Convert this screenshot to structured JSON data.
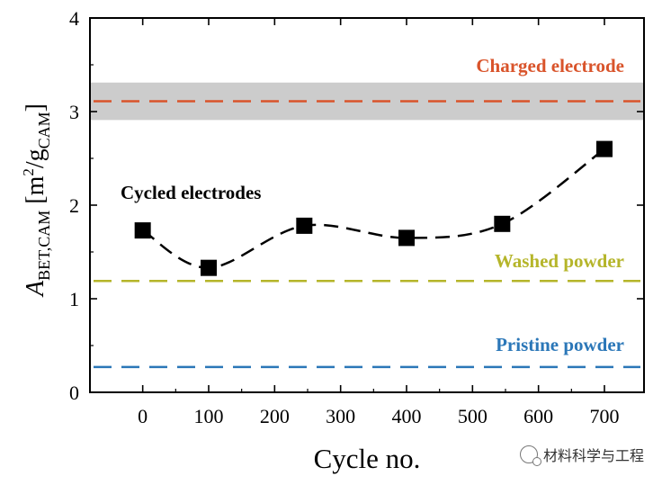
{
  "chart_data": {
    "type": "scatter",
    "title": "",
    "xlabel": "Cycle no.",
    "ylabel": {
      "main": "A",
      "sub": "BET,CAM",
      "unit_pre": " [m",
      "unit_sup": "2",
      "unit_mid": "/g",
      "unit_sub": "CAM",
      "unit_post": "]"
    },
    "xlim": [
      -80,
      760
    ],
    "ylim": [
      0,
      4
    ],
    "xticks": [
      0,
      100,
      200,
      300,
      400,
      500,
      600,
      700
    ],
    "yticks": [
      0,
      1,
      2,
      3,
      4
    ],
    "series": [
      {
        "name": "Cycled electrodes",
        "x": [
          0,
          100,
          245,
          400,
          545,
          700
        ],
        "y": [
          1.73,
          1.33,
          1.78,
          1.65,
          1.8,
          2.6
        ],
        "marker": "square",
        "line": "dashed",
        "color": "#000000"
      }
    ],
    "reference_lines": [
      {
        "name": "Charged electrode",
        "y": 3.11,
        "color": "#d9542b",
        "band": [
          2.91,
          3.31
        ],
        "band_color": "#cccccc"
      },
      {
        "name": "Washed powder",
        "y": 1.19,
        "color": "#b5b52a"
      },
      {
        "name": "Pristine powder",
        "y": 0.27,
        "color": "#2b77b8"
      }
    ],
    "annotations": [
      "Charged electrode",
      "Cycled electrodes",
      "Washed powder",
      "Pristine powder"
    ]
  },
  "watermark": {
    "text": "材料科学与工程",
    "icon": "wechat-icon"
  }
}
